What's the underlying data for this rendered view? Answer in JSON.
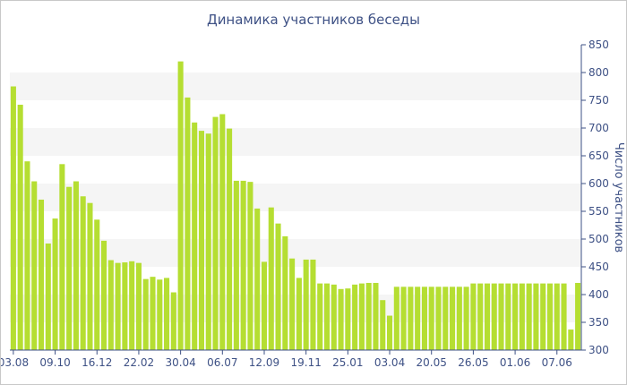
{
  "chart_data": {
    "type": "bar",
    "title": "Динамика участников беседы",
    "xlabel": "",
    "ylabel": "Число участников",
    "ylim": [
      300,
      850
    ],
    "y_ticks": [
      300,
      350,
      400,
      450,
      500,
      550,
      600,
      650,
      700,
      750,
      800,
      850
    ],
    "y_axis_side": "right",
    "grid": "alternating horizontal bands",
    "bar_color": "#b5de32",
    "band_color": "#f5f5f5",
    "text_color": "#3e5185",
    "x_tick_labels": [
      {
        "index": 0,
        "label": "03.08"
      },
      {
        "index": 6,
        "label": "09.10"
      },
      {
        "index": 12,
        "label": "16.12"
      },
      {
        "index": 18,
        "label": "22.02"
      },
      {
        "index": 24,
        "label": "30.04"
      },
      {
        "index": 30,
        "label": "06.07"
      },
      {
        "index": 36,
        "label": "12.09"
      },
      {
        "index": 42,
        "label": "19.11"
      },
      {
        "index": 48,
        "label": "25.01"
      },
      {
        "index": 54,
        "label": "03.04"
      },
      {
        "index": 60,
        "label": "20.05"
      },
      {
        "index": 66,
        "label": "26.05"
      },
      {
        "index": 72,
        "label": "01.06"
      },
      {
        "index": 78,
        "label": "07.06"
      }
    ],
    "values": [
      775,
      742,
      640,
      604,
      571,
      492,
      537,
      635,
      594,
      604,
      577,
      565,
      535,
      497,
      462,
      457,
      458,
      460,
      457,
      428,
      432,
      427,
      430,
      404,
      820,
      755,
      710,
      695,
      690,
      720,
      725,
      699,
      605,
      605,
      603,
      555,
      459,
      557,
      528,
      505,
      465,
      430,
      463,
      463,
      420,
      420,
      418,
      410,
      411,
      418,
      420,
      421,
      421,
      390,
      362,
      414,
      414,
      414,
      414,
      414,
      414,
      414,
      414,
      414,
      414,
      414,
      420,
      420,
      420,
      420,
      420,
      420,
      420,
      420,
      420,
      420,
      420,
      420,
      420,
      420,
      337,
      421
    ]
  }
}
